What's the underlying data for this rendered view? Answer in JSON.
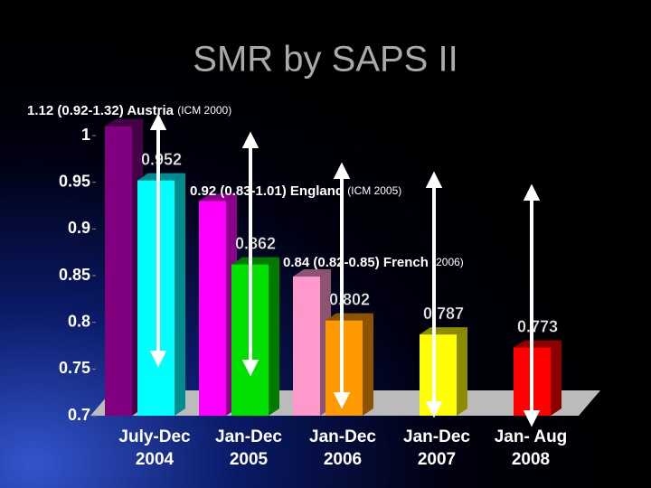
{
  "chart_data": {
    "type": "bar",
    "title": "SMR by SAPS II",
    "categories": [
      [
        "July-Dec",
        "2004"
      ],
      [
        "Jan-Dec",
        "2005"
      ],
      [
        "Jan-Dec",
        "2006"
      ],
      [
        "Jan-Dec",
        "2007"
      ],
      [
        "Jan- Aug",
        "2008"
      ]
    ],
    "series": [
      {
        "colors": [
          "#800080",
          "#ff00ff",
          "#ff99cc",
          null,
          null
        ],
        "values": [
          1.01,
          0.93,
          0.849,
          null,
          null
        ]
      },
      {
        "colors": [
          "#00ffff",
          "#00e000",
          "#ff9900",
          "#ffff00",
          "#ff0000"
        ],
        "values": [
          0.952,
          0.862,
          0.802,
          0.787,
          0.773
        ]
      }
    ],
    "ylim": [
      0.7,
      1
    ],
    "yticks": [
      0.7,
      0.75,
      0.8,
      0.85,
      0.9,
      0.95,
      1
    ],
    "annotations": [
      {
        "text": "1.12 (0.92-1.32) Austria",
        "note": "(ICM 2000)"
      },
      {
        "text": "0.92 (0.83-1.01) England",
        "note": "(ICM 2005)"
      },
      {
        "text": "0.84 (0.82-0.85) French",
        "note": "(2006)"
      }
    ]
  }
}
